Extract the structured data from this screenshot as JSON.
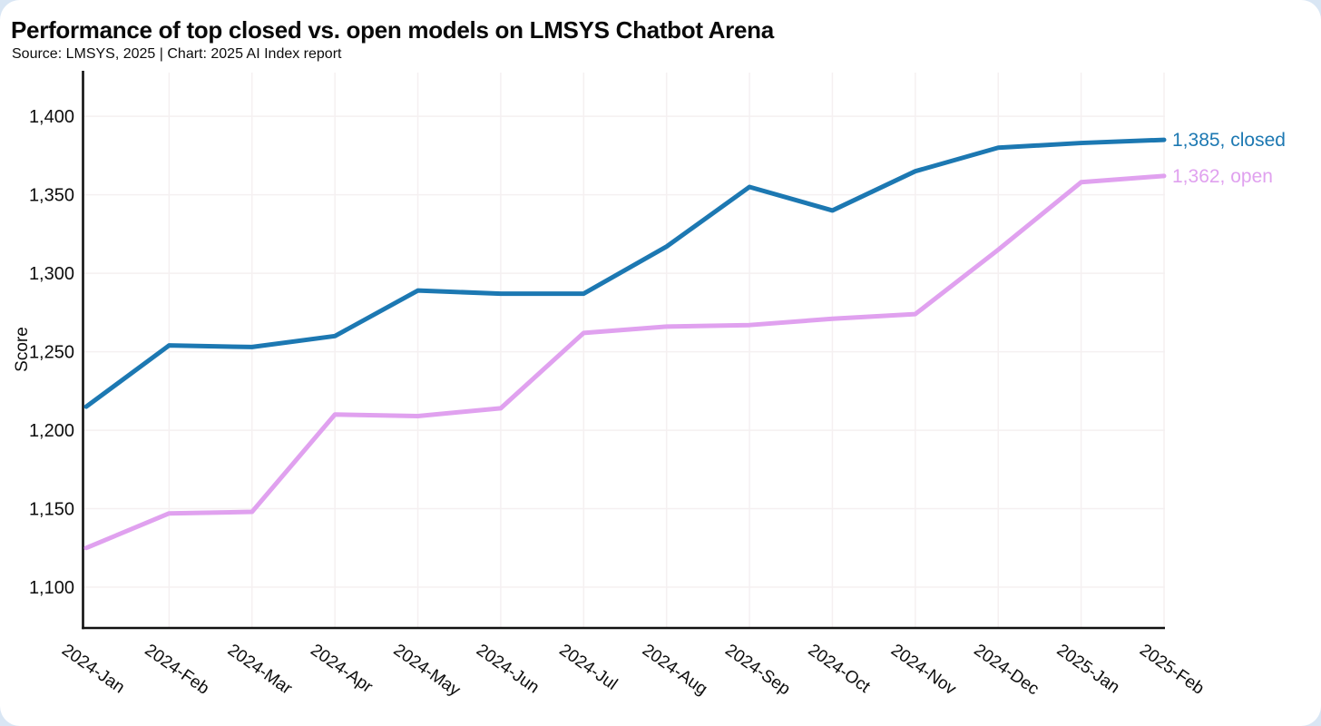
{
  "page": {
    "title": "Performance of top closed vs. open models on LMSYS Chatbot Arena",
    "subtitle": "Source: LMSYS, 2025 | Chart: 2025 AI Index report"
  },
  "colors": {
    "closed_line": "#1c78b2",
    "open_line": "#e0a1ef",
    "axis": "#111111",
    "grid": "#f5f0f1",
    "text": "#0d0d0d",
    "card_background": "#ffffff",
    "page_background": "#d9e6f4"
  },
  "chart_data": {
    "type": "line",
    "title": "Performance of top closed vs. open models on LMSYS Chatbot Arena",
    "subtitle": "Source: LMSYS, 2025 | Chart: 2025 AI Index report",
    "xlabel": "",
    "ylabel": "Score",
    "grid": true,
    "legend_position": "inline-right-end-labels",
    "ylim": [
      1074,
      1429
    ],
    "x": [
      "2024-Jan",
      "2024-Feb",
      "2024-Mar",
      "2024-Apr",
      "2024-May",
      "2024-Jun",
      "2024-Jul",
      "2024-Aug",
      "2024-Sep",
      "2024-Oct",
      "2024-Nov",
      "2024-Dec",
      "2025-Jan",
      "2025-Feb"
    ],
    "y_ticks": [
      {
        "value": 1100,
        "label": "1,100"
      },
      {
        "value": 1150,
        "label": "1,150"
      },
      {
        "value": 1200,
        "label": "1,200"
      },
      {
        "value": 1250,
        "label": "1,250"
      },
      {
        "value": 1300,
        "label": "1,300"
      },
      {
        "value": 1350,
        "label": "1,350"
      },
      {
        "value": 1400,
        "label": "1,400"
      }
    ],
    "series": [
      {
        "name": "closed",
        "color": "#1c78b2",
        "end_label": "1,385, closed",
        "values": [
          1215,
          1254,
          1253,
          1260,
          1289,
          1287,
          1287,
          1317,
          1355,
          1340,
          1365,
          1380,
          1383,
          1385
        ]
      },
      {
        "name": "open",
        "color": "#e0a1ef",
        "end_label": "1,362, open",
        "values": [
          1125,
          1147,
          1148,
          1210,
          1209,
          1214,
          1262,
          1266,
          1267,
          1271,
          1274,
          1315,
          1358,
          1362
        ]
      }
    ]
  }
}
